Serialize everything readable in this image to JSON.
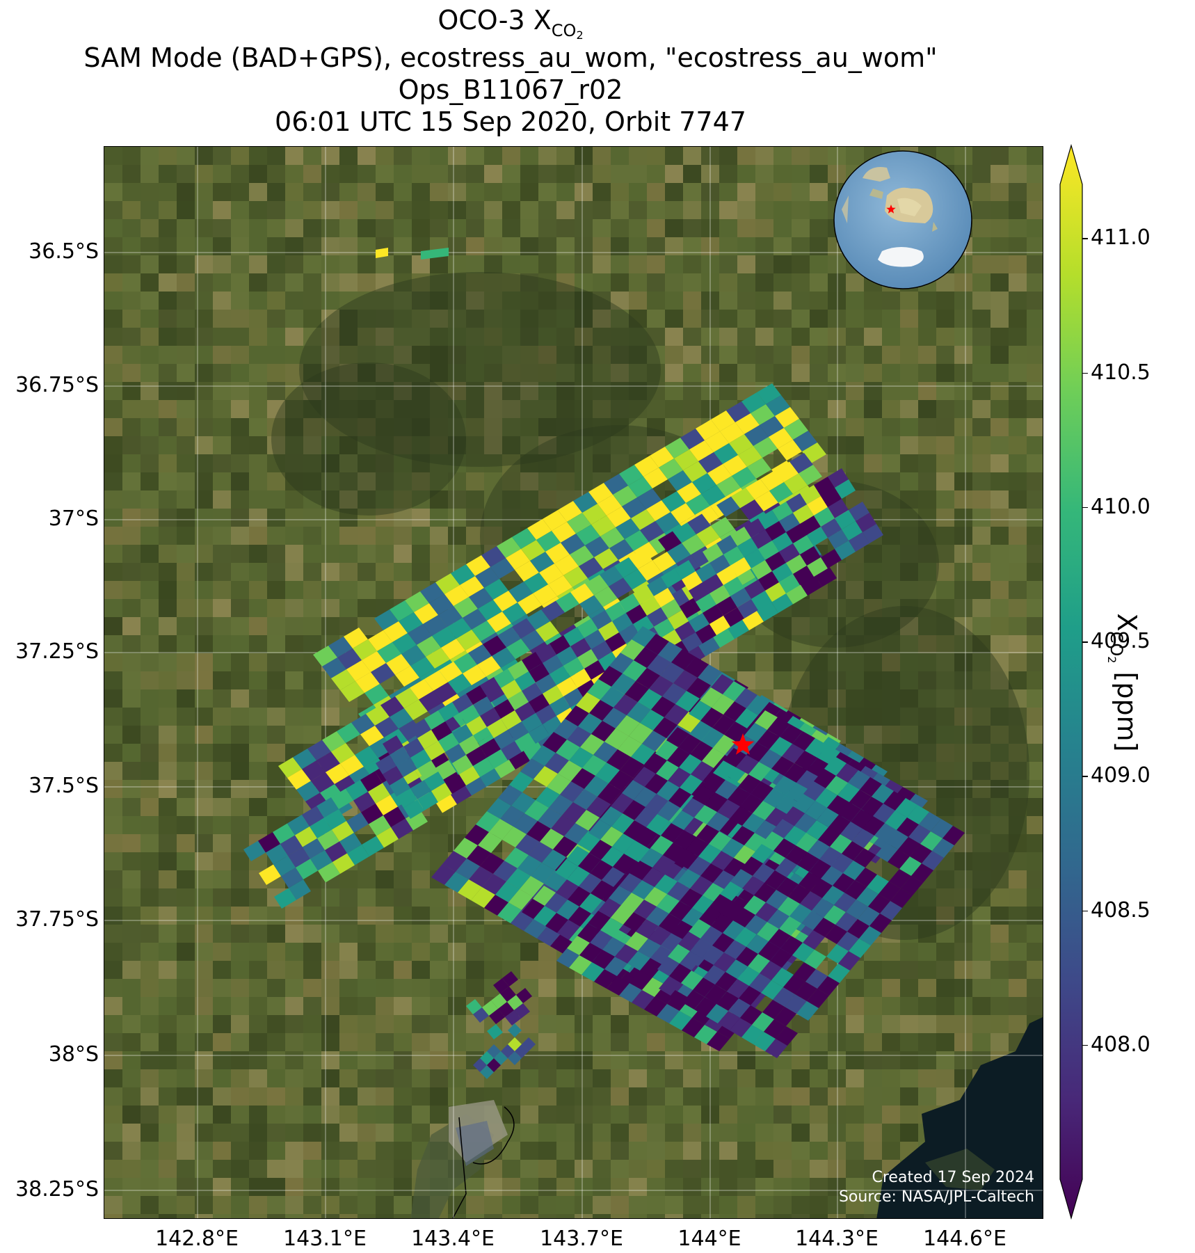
{
  "title": {
    "line1_prefix": "OCO-3 X",
    "line1_sub": "CO",
    "line1_sub2": "2",
    "line2": "SAM Mode (BAD+GPS), ecostress_au_wom, \"ecostress_au_wom\"",
    "line3": "Ops_B11067_r02",
    "line4": "06:01 UTC 15 Sep 2020, Orbit 7747"
  },
  "map": {
    "lat_ticks": [
      "36.5°S",
      "36.75°S",
      "37°S",
      "37.25°S",
      "37.5°S",
      "37.75°S",
      "38°S",
      "38.25°S"
    ],
    "lon_ticks": [
      "142.8°E",
      "143.1°E",
      "143.4°E",
      "143.7°E",
      "144°E",
      "144.3°E",
      "144.6°E"
    ],
    "credit_line1": "Created 17 Sep 2024",
    "credit_line2": "Source: NASA/JPL-Caltech",
    "target_marker": "red-star",
    "inset": "globe-australia-antarctica"
  },
  "colorbar": {
    "label_prefix": "X",
    "label_sub": "CO",
    "label_sub2": "2",
    "label_suffix": " [ppm]",
    "ticks": [
      "411.0",
      "410.5",
      "410.0",
      "409.5",
      "409.0",
      "408.5",
      "408.0"
    ],
    "vmin": 407.5,
    "vmax": 411.2,
    "colormap": "viridis"
  },
  "colors": {
    "viridis": [
      "#440154",
      "#482878",
      "#3e4989",
      "#31688e",
      "#26828e",
      "#1f9e89",
      "#35b779",
      "#6ece58",
      "#b5de2b",
      "#fde725"
    ],
    "land_dark": "#3b4a24",
    "land_mid": "#5a6a33",
    "water": "#0b1a22",
    "marker": "#ff0000"
  }
}
